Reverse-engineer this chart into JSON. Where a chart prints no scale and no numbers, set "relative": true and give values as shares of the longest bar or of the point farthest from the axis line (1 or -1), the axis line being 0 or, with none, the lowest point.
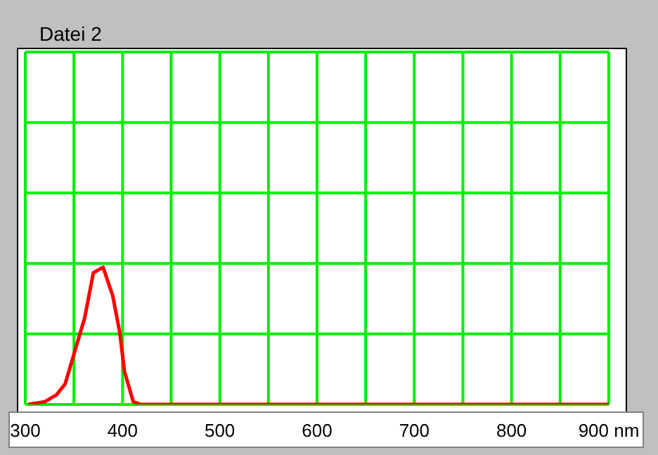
{
  "chart_data": {
    "type": "line",
    "title": "Datei 2",
    "relative": true,
    "grid": true,
    "legend": false,
    "marker": "none",
    "line_style": "solid",
    "xlim": [
      300,
      900
    ],
    "xticks": [
      300,
      {
        "value": 350,
        "label": null
      },
      400,
      {
        "value": 450,
        "label": null
      },
      500,
      {
        "value": 550,
        "label": null
      },
      600,
      {
        "value": 650,
        "label": null
      },
      700,
      {
        "value": 750,
        "label": null
      },
      800,
      {
        "value": 850,
        "label": null
      },
      {
        "value": 900,
        "label": "900 nm"
      }
    ],
    "x": [
      303,
      320,
      332,
      341,
      351,
      361,
      370,
      380,
      390,
      397,
      402,
      411,
      419,
      900
    ],
    "series": [
      {
        "color": "#ff0000",
        "values": [
          0,
          0.02,
          0.07,
          0.15,
          0.39,
          0.63,
          0.96,
          1,
          0.79,
          0.53,
          0.24,
          0.02,
          0,
          0
        ]
      }
    ]
  }
}
